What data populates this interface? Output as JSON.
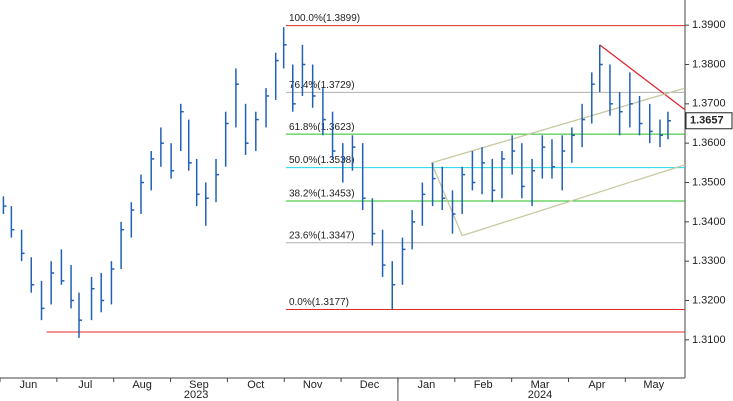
{
  "chart_data": {
    "type": "ohlc",
    "color": "#2060b8",
    "x": [
      0.06,
      0.2,
      0.38,
      0.55,
      0.73,
      0.9,
      1.08,
      1.25,
      1.39,
      1.61,
      1.78,
      1.96,
      2.13,
      2.31,
      2.48,
      2.66,
      2.83,
      3.01,
      3.18,
      3.32,
      3.46,
      3.62,
      3.8,
      3.97,
      4.15,
      4.32,
      4.5,
      4.68,
      4.85,
      4.99,
      5.15,
      5.32,
      5.5,
      5.68,
      5.85,
      6.03,
      6.2,
      6.38,
      6.55,
      6.73,
      6.9,
      7.08,
      7.25,
      7.43,
      7.61,
      7.78,
      7.96,
      8.13,
      8.31,
      8.48,
      8.66,
      8.83,
      9.01,
      9.18,
      9.36,
      9.54,
      9.71,
      9.89,
      10.06,
      10.24,
      10.41,
      10.55,
      10.73,
      10.9,
      11.08,
      11.25,
      11.43,
      11.61,
      11.75
    ],
    "high": [
      1.3465,
      1.344,
      1.338,
      1.331,
      1.325,
      1.33,
      1.333,
      1.329,
      1.322,
      1.326,
      1.327,
      1.33,
      1.34,
      1.345,
      1.352,
      1.358,
      1.364,
      1.36,
      1.37,
      1.366,
      1.356,
      1.35,
      1.356,
      1.368,
      1.379,
      1.37,
      1.368,
      1.374,
      1.383,
      1.3895,
      1.38,
      1.385,
      1.38,
      1.374,
      1.368,
      1.36,
      1.362,
      1.36,
      1.346,
      1.338,
      1.33,
      1.336,
      1.343,
      1.35,
      1.355,
      1.354,
      1.348,
      1.354,
      1.358,
      1.359,
      1.356,
      1.358,
      1.362,
      1.36,
      1.356,
      1.362,
      1.361,
      1.362,
      1.364,
      1.37,
      1.378,
      1.385,
      1.38,
      1.373,
      1.378,
      1.372,
      1.37,
      1.366,
      1.368
    ],
    "low": [
      1.342,
      1.336,
      1.33,
      1.322,
      1.315,
      1.319,
      1.324,
      1.318,
      1.3105,
      1.315,
      1.317,
      1.319,
      1.328,
      1.336,
      1.342,
      1.348,
      1.354,
      1.351,
      1.358,
      1.353,
      1.344,
      1.339,
      1.345,
      1.354,
      1.364,
      1.357,
      1.358,
      1.364,
      1.371,
      1.379,
      1.368,
      1.372,
      1.369,
      1.362,
      1.356,
      1.35,
      1.353,
      1.343,
      1.334,
      1.326,
      1.3177,
      1.324,
      1.333,
      1.339,
      1.344,
      1.343,
      1.337,
      1.342,
      1.348,
      1.347,
      1.345,
      1.346,
      1.352,
      1.346,
      1.344,
      1.351,
      1.351,
      1.348,
      1.355,
      1.359,
      1.365,
      1.373,
      1.367,
      1.362,
      1.364,
      1.362,
      1.36,
      1.359,
      1.361
    ],
    "close": [
      1.344,
      1.338,
      1.332,
      1.324,
      1.318,
      1.327,
      1.325,
      1.32,
      1.315,
      1.323,
      1.32,
      1.328,
      1.338,
      1.343,
      1.35,
      1.356,
      1.36,
      1.353,
      1.368,
      1.355,
      1.347,
      1.346,
      1.352,
      1.365,
      1.375,
      1.36,
      1.366,
      1.372,
      1.381,
      1.385,
      1.37,
      1.38,
      1.372,
      1.366,
      1.358,
      1.356,
      1.359,
      1.346,
      1.337,
      1.329,
      1.324,
      1.333,
      1.34,
      1.347,
      1.351,
      1.346,
      1.342,
      1.352,
      1.35,
      1.355,
      1.348,
      1.356,
      1.358,
      1.349,
      1.353,
      1.359,
      1.354,
      1.358,
      1.362,
      1.366,
      1.375,
      1.38,
      1.37,
      1.368,
      1.37,
      1.365,
      1.363,
      1.362,
      1.3657
    ],
    "xlim": [
      0,
      12.05
    ],
    "xticks": [
      {
        "value": 0.5,
        "label": "Jun"
      },
      {
        "value": 1.5,
        "label": "Jul"
      },
      {
        "value": 2.5,
        "label": "Aug"
      },
      {
        "value": 3.5,
        "label": "Sep"
      },
      {
        "value": 4.5,
        "label": "Oct"
      },
      {
        "value": 5.5,
        "label": "Nov"
      },
      {
        "value": 6.5,
        "label": "Dec"
      },
      {
        "value": 7.5,
        "label": "Jan"
      },
      {
        "value": 8.5,
        "label": "Feb"
      },
      {
        "value": 9.5,
        "label": "Mar"
      },
      {
        "value": 10.5,
        "label": "Apr"
      },
      {
        "value": 11.5,
        "label": "May"
      }
    ],
    "year_labels": [
      {
        "value": 3.45,
        "label": "2023"
      },
      {
        "value": 9.5,
        "label": "2024"
      }
    ],
    "year_divider": 7.0,
    "ylim": [
      1.3003,
      1.3964
    ],
    "yticks": [
      {
        "value": 1.31,
        "label": "1.3100"
      },
      {
        "value": 1.32,
        "label": "1.3200"
      },
      {
        "value": 1.33,
        "label": "1.3300"
      },
      {
        "value": 1.34,
        "label": "1.3400"
      },
      {
        "value": 1.35,
        "label": "1.3500"
      },
      {
        "value": 1.36,
        "label": "1.3600"
      },
      {
        "value": 1.37,
        "label": "1.3700"
      },
      {
        "value": 1.38,
        "label": "1.3800"
      },
      {
        "value": 1.39,
        "label": "1.3900"
      }
    ],
    "levels": [
      {
        "value": 1.3899,
        "label": "100.0%(1.3899)",
        "color": "#e0282d",
        "start": 5.03
      },
      {
        "value": 1.3729,
        "label": "76.4%(1.3729)",
        "color": "#b0b0b0",
        "start": 5.03
      },
      {
        "value": 1.3623,
        "label": "61.8%(1.3623)",
        "color": "#20c020",
        "start": 5.03
      },
      {
        "value": 1.3538,
        "label": "50.0%(1.3538)",
        "color": "#20d8e8",
        "start": 5.03
      },
      {
        "value": 1.3453,
        "label": "38.2%(1.3453)",
        "color": "#20c020",
        "start": 5.03
      },
      {
        "value": 1.3347,
        "label": "23.6%(1.3347)",
        "color": "#b0b0b0",
        "start": 5.03
      },
      {
        "value": 1.3177,
        "label": "0.0%(1.3177)",
        "color": "#e0282d",
        "start": 5.03
      },
      {
        "value": 1.312,
        "color": "#e0282d",
        "start": 0.82
      }
    ],
    "trendlines": [
      {
        "x": [
          10.55,
          12.05
        ],
        "y": [
          1.385,
          1.3685
        ],
        "color": "#e0282d"
      },
      {
        "x": [
          7.59,
          12.05
        ],
        "y": [
          1.355,
          1.374
        ],
        "color": "#c8c8a0"
      },
      {
        "x": [
          8.13,
          12.05
        ],
        "y": [
          1.3365,
          1.3545
        ],
        "color": "#c8c8a0"
      },
      {
        "x": [
          7.59,
          8.13
        ],
        "y": [
          1.355,
          1.3365
        ],
        "color": "#c8c8a0"
      }
    ]
  }
}
